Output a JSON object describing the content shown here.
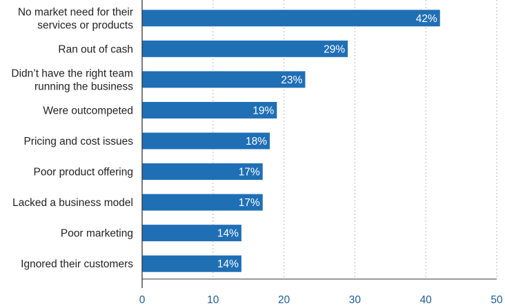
{
  "chart_data": {
    "type": "bar",
    "orientation": "horizontal",
    "categories": [
      [
        "No market need for their",
        "services or products"
      ],
      [
        "Ran out of cash"
      ],
      [
        "Didn’t have the right team",
        "running the business"
      ],
      [
        "Were outcompeted"
      ],
      [
        "Pricing and cost issues"
      ],
      [
        "Poor product offering"
      ],
      [
        "Lacked a business model"
      ],
      [
        "Poor marketing"
      ],
      [
        "Ignored their customers"
      ]
    ],
    "values": [
      42,
      29,
      23,
      19,
      18,
      17,
      17,
      14,
      14
    ],
    "value_labels": [
      "42%",
      "29%",
      "23%",
      "19%",
      "18%",
      "17%",
      "17%",
      "14%",
      "14%"
    ],
    "xlim": [
      0,
      50
    ],
    "xticks": [
      0,
      10,
      20,
      30,
      40,
      50
    ],
    "xtick_labels": [
      "0",
      "10",
      "20",
      "30",
      "40",
      "50"
    ],
    "title": "",
    "xlabel": "",
    "ylabel": "",
    "grid": "vertical dashed",
    "colors": {
      "bar": "#1f6fb5",
      "grid": "#b9b9b9",
      "axis": "#333333",
      "tick_text": "#1f5c96",
      "label_text": "#222222",
      "value_text": "#ffffff"
    }
  }
}
